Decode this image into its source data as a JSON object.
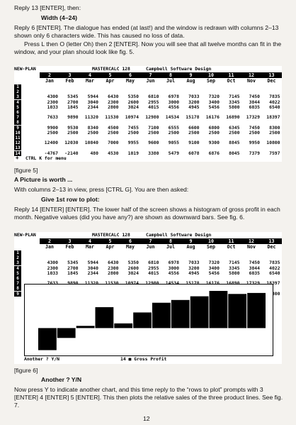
{
  "page": {
    "intro": "Reply 13 [ENTER], then:",
    "width_prompt": "Width (4–24)",
    "p1": "Reply 6 [ENTER]. The dialogue has ended (at last!) and the window is redrawn with columns 2–13 shown only 6 characters wide. This has caused no loss of data.",
    "p2": "Press L then O (letter Oh) then 2 [ENTER]. Now you will see that all twelve months can fit in the window, and your plan should look like fig. 5.",
    "fig5_caption": "[figure 5]",
    "picture_head": "A Picture is worth ...",
    "p3": "With columns 2–13 in view, press [CTRL G]. You are then asked:",
    "give_prompt": "Give 1st row to plot:",
    "p4": "Reply 14 [ENTER] [ENTER]. The lower half of the screen shows a histogram of gross profit in each month. Negative values (did you have any?) are shown as downward bars. See fig. 6.",
    "fig6_caption": "[figure 6]",
    "another": "Another ? Y/N",
    "p5": "Now press Y to indicate another chart, and this time reply to the “rows to plot” prompts with 3 [ENTER] 4 [ENTER] 5 [ENTER]. This then plots the relative sales of the three product lines. See fig. 7.",
    "page_number": "12"
  },
  "screen": {
    "file": "NEW-PLAN",
    "app": "MASTERCALC 128",
    "vendor": "Campbell Software Design",
    "col_numbers": [
      "2",
      "3",
      "4",
      "5",
      "6",
      "7",
      "8",
      "9",
      "10",
      "11",
      "12",
      "13"
    ],
    "months": [
      "Jan",
      "Feb",
      "Mar",
      "Apr",
      "May",
      "Jun",
      "Jul",
      "Aug",
      "Sep",
      "Oct",
      "Nov",
      "Dec"
    ],
    "rows1": [
      {
        "n": "1",
        "cells": [
          "",
          "",
          "",
          "",
          "",
          "",
          "",
          "",
          "",
          "",
          "",
          ""
        ]
      },
      {
        "n": "2",
        "cells": [
          "",
          "",
          "",
          "",
          "",
          "",
          "",
          "",
          "",
          "",
          "",
          ""
        ]
      },
      {
        "n": "3",
        "cells": [
          "4300",
          "5345",
          "5944",
          "6430",
          "5350",
          "6810",
          "6978",
          "7033",
          "7320",
          "7145",
          "7450",
          "7835"
        ]
      },
      {
        "n": "4",
        "cells": [
          "2300",
          "2700",
          "3040",
          "2300",
          "2600",
          "2955",
          "3000",
          "3200",
          "3400",
          "3345",
          "3844",
          "4022"
        ]
      },
      {
        "n": "5",
        "cells": [
          "1033",
          "1845",
          "2344",
          "2800",
          "3024",
          "4015",
          "4556",
          "4945",
          "5456",
          "5800",
          "6035",
          "6540"
        ]
      },
      {
        "n": "6",
        "cells": [
          "",
          "",
          "",
          "",
          "",
          "",
          "",
          "",
          "",
          "",
          "",
          ""
        ]
      },
      {
        "n": "7",
        "cells": [
          "7633",
          "9890",
          "11320",
          "11530",
          "10974",
          "12980",
          "14534",
          "15178",
          "16176",
          "16890",
          "17329",
          "18397"
        ]
      },
      {
        "n": "8",
        "cells": [
          "",
          "",
          "",
          "",
          "",
          "",
          "",
          "",
          "",
          "",
          "",
          ""
        ]
      },
      {
        "n": "9",
        "cells": [
          "9900",
          "9530",
          "8340",
          "4500",
          "7455",
          "7100",
          "6555",
          "6600",
          "6800",
          "6345",
          "7450",
          "8300"
        ]
      },
      {
        "n": "10",
        "cells": [
          "2500",
          "2500",
          "2500",
          "2500",
          "2500",
          "2500",
          "2500",
          "2500",
          "2500",
          "2500",
          "2500",
          "2500"
        ]
      },
      {
        "n": "11",
        "cells": [
          "",
          "",
          "",
          "",
          "",
          "",
          "",
          "",
          "",
          "",
          "",
          ""
        ]
      },
      {
        "n": "12",
        "cells": [
          "12400",
          "12030",
          "10840",
          "7000",
          "9955",
          "9600",
          "9055",
          "9100",
          "9300",
          "8845",
          "9950",
          "10800"
        ]
      },
      {
        "n": "13",
        "cells": [
          "",
          "",
          "",
          "",
          "",
          "",
          "",
          "",
          "",
          "",
          "",
          ""
        ]
      },
      {
        "n": "14",
        "cells": [
          "-4767",
          "-2140",
          "480",
          "4530",
          "1019",
          "3380",
          "5479",
          "6078",
          "6876",
          "8045",
          "7379",
          "7597"
        ]
      }
    ],
    "ctrl_hint": "CTRL K for menu",
    "cursor": "+",
    "rows2": [
      {
        "n": "1",
        "cells": [
          "",
          "",
          "",
          "",
          "",
          "",
          "",
          "",
          "",
          "",
          "",
          ""
        ]
      },
      {
        "n": "2",
        "cells": [
          "",
          "",
          "",
          "",
          "",
          "",
          "",
          "",
          "",
          "",
          "",
          ""
        ]
      },
      {
        "n": "3",
        "cells": [
          "4300",
          "5345",
          "5944",
          "6430",
          "5350",
          "6810",
          "6978",
          "7033",
          "7320",
          "7145",
          "7450",
          "7835"
        ]
      },
      {
        "n": "4",
        "cells": [
          "2300",
          "2700",
          "3040",
          "2300",
          "2600",
          "2955",
          "3000",
          "3200",
          "3400",
          "3345",
          "3844",
          "4022"
        ]
      },
      {
        "n": "5",
        "cells": [
          "1033",
          "1845",
          "2344",
          "2800",
          "3024",
          "4015",
          "4556",
          "4945",
          "5456",
          "5800",
          "6035",
          "6540"
        ]
      },
      {
        "n": "6",
        "cells": [
          "",
          "",
          "",
          "",
          "",
          "",
          "",
          "",
          "",
          "",
          "",
          ""
        ]
      },
      {
        "n": "7",
        "cells": [
          "7633",
          "9890",
          "11320",
          "11530",
          "10974",
          "12980",
          "14534",
          "15178",
          "16176",
          "16890",
          "17329",
          "18397"
        ]
      },
      {
        "n": "8",
        "cells": [
          "",
          "",
          "",
          "",
          "",
          "",
          "",
          "",
          "",
          "",
          "",
          ""
        ]
      },
      {
        "n": "9",
        "cells": [
          "9900",
          "9530",
          "8340",
          "4500",
          "7455",
          "7100",
          "6555",
          "6600",
          "6800",
          "6345",
          "7450",
          "8300"
        ]
      }
    ],
    "chart_footer_left": "Another ? Y/N",
    "chart_footer_mid": "14 ■ Gross Profit"
  },
  "chart_data": {
    "type": "bar",
    "categories": [
      "Jan",
      "Feb",
      "Mar",
      "Apr",
      "May",
      "Jun",
      "Jul",
      "Aug",
      "Sep",
      "Oct",
      "Nov",
      "Dec"
    ],
    "values": [
      -4767,
      -2140,
      480,
      4530,
      1019,
      3380,
      5479,
      6078,
      6876,
      8045,
      7379,
      7597
    ],
    "title": "14 ■ Gross Profit",
    "xlabel": "",
    "ylabel": "",
    "ylim": [
      -5000,
      8500
    ]
  }
}
